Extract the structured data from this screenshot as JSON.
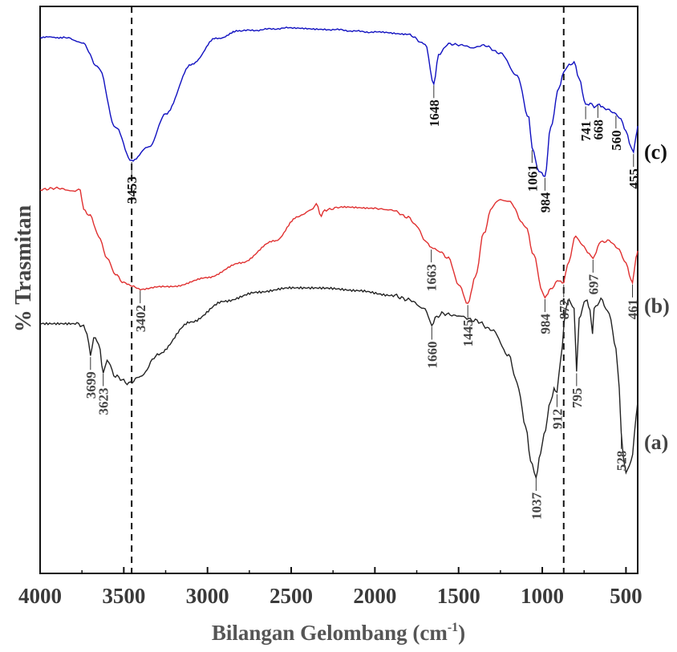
{
  "chart_data": {
    "type": "line",
    "xlabel": "Bilangan Gelombang (cm",
    "xlabel_sup": "-1",
    "xlabel_close": ")",
    "ylabel": "% Trasmitan",
    "xlim": [
      4000,
      430
    ],
    "x_ticks": [
      4000,
      3500,
      3000,
      2500,
      2000,
      1500,
      1000,
      500
    ],
    "tick_labels": [
      "4000",
      "3500",
      "3000",
      "2500",
      "2000",
      "1500",
      "1000",
      "500"
    ],
    "dashed_reference_lines": [
      3453,
      872
    ],
    "grid": false,
    "legend": "labels at right end of each trace",
    "series": [
      {
        "name": "(c)",
        "color": "#1010c0",
        "label_color": "#111111",
        "points": [
          [
            4000,
            0.93
          ],
          [
            3850,
            0.93
          ],
          [
            3750,
            0.89
          ],
          [
            3650,
            0.7
          ],
          [
            3550,
            0.25
          ],
          [
            3453,
            0.0
          ],
          [
            3350,
            0.1
          ],
          [
            3250,
            0.35
          ],
          [
            3100,
            0.72
          ],
          [
            2950,
            0.92
          ],
          [
            2800,
            0.98
          ],
          [
            2500,
            1.0
          ],
          [
            2300,
            0.99
          ],
          [
            2000,
            0.97
          ],
          [
            1800,
            0.95
          ],
          [
            1700,
            0.88
          ],
          [
            1648,
            0.58
          ],
          [
            1620,
            0.8
          ],
          [
            1560,
            0.88
          ],
          [
            1470,
            0.87
          ],
          [
            1420,
            0.85
          ],
          [
            1350,
            0.87
          ],
          [
            1250,
            0.81
          ],
          [
            1150,
            0.64
          ],
          [
            1080,
            0.32
          ],
          [
            1061,
            0.09
          ],
          [
            1020,
            -0.08
          ],
          [
            984,
            -0.12
          ],
          [
            950,
            0.25
          ],
          [
            900,
            0.55
          ],
          [
            872,
            0.67
          ],
          [
            840,
            0.72
          ],
          [
            810,
            0.74
          ],
          [
            780,
            0.62
          ],
          [
            741,
            0.42
          ],
          [
            705,
            0.43
          ],
          [
            690,
            0.4
          ],
          [
            668,
            0.43
          ],
          [
            640,
            0.4
          ],
          [
            600,
            0.38
          ],
          [
            560,
            0.35
          ],
          [
            530,
            0.31
          ],
          [
            500,
            0.22
          ],
          [
            470,
            0.1
          ],
          [
            455,
            0.06
          ],
          [
            440,
            0.18
          ],
          [
            430,
            0.26
          ]
        ],
        "peaks": [
          {
            "x": 1648,
            "label": "1648",
            "dir": "below"
          },
          {
            "x": 3453,
            "label": "3453",
            "dir": "below"
          },
          {
            "x": 1061,
            "label": "1061",
            "dir": "below"
          },
          {
            "x": 984,
            "label": "984",
            "dir": "below"
          },
          {
            "x": 741,
            "label": "741",
            "dir": "below"
          },
          {
            "x": 668,
            "label": "668",
            "dir": "below"
          },
          {
            "x": 560,
            "label": "560",
            "dir": "below"
          },
          {
            "x": 455,
            "label": "455",
            "dir": "below"
          }
        ]
      },
      {
        "name": "(b)",
        "color": "#e03030",
        "label_color": "#444444",
        "points": [
          [
            4000,
            0.8
          ],
          [
            3900,
            0.81
          ],
          [
            3800,
            0.79
          ],
          [
            3760,
            0.8
          ],
          [
            3740,
            0.66
          ],
          [
            3700,
            0.62
          ],
          [
            3650,
            0.48
          ],
          [
            3600,
            0.33
          ],
          [
            3550,
            0.22
          ],
          [
            3500,
            0.16
          ],
          [
            3402,
            0.12
          ],
          [
            3200,
            0.14
          ],
          [
            3000,
            0.2
          ],
          [
            2800,
            0.3
          ],
          [
            2600,
            0.45
          ],
          [
            2450,
            0.62
          ],
          [
            2380,
            0.66
          ],
          [
            2350,
            0.7
          ],
          [
            2320,
            0.62
          ],
          [
            2300,
            0.66
          ],
          [
            2200,
            0.68
          ],
          [
            2000,
            0.67
          ],
          [
            1900,
            0.66
          ],
          [
            1800,
            0.61
          ],
          [
            1750,
            0.55
          ],
          [
            1700,
            0.45
          ],
          [
            1663,
            0.4
          ],
          [
            1620,
            0.38
          ],
          [
            1560,
            0.33
          ],
          [
            1500,
            0.15
          ],
          [
            1445,
            0.02
          ],
          [
            1400,
            0.2
          ],
          [
            1350,
            0.5
          ],
          [
            1300,
            0.68
          ],
          [
            1260,
            0.73
          ],
          [
            1200,
            0.72
          ],
          [
            1100,
            0.55
          ],
          [
            1050,
            0.35
          ],
          [
            1000,
            0.1
          ],
          [
            984,
            0.06
          ],
          [
            950,
            0.12
          ],
          [
            900,
            0.18
          ],
          [
            872,
            0.16
          ],
          [
            850,
            0.28
          ],
          [
            800,
            0.48
          ],
          [
            760,
            0.42
          ],
          [
            720,
            0.36
          ],
          [
            697,
            0.33
          ],
          [
            650,
            0.44
          ],
          [
            600,
            0.45
          ],
          [
            550,
            0.4
          ],
          [
            500,
            0.3
          ],
          [
            470,
            0.18
          ],
          [
            461,
            0.16
          ],
          [
            440,
            0.33
          ],
          [
            430,
            0.38
          ]
        ],
        "peaks": [
          {
            "x": 1663,
            "label": "1663",
            "dir": "below"
          },
          {
            "x": 3402,
            "label": "3402",
            "dir": "below"
          },
          {
            "x": 1445,
            "label": "1445",
            "dir": "below"
          },
          {
            "x": 984,
            "label": "984",
            "dir": "below"
          },
          {
            "x": 872,
            "label": "872",
            "dir": "below"
          },
          {
            "x": 697,
            "label": "697",
            "dir": "below"
          },
          {
            "x": 461,
            "label": "461",
            "dir": "below"
          }
        ]
      },
      {
        "name": "(a)",
        "color": "#222222",
        "label_color": "#444444",
        "points": [
          [
            4000,
            0.76
          ],
          [
            3800,
            0.76
          ],
          [
            3750,
            0.75
          ],
          [
            3720,
            0.72
          ],
          [
            3699,
            0.62
          ],
          [
            3680,
            0.7
          ],
          [
            3650,
            0.67
          ],
          [
            3623,
            0.55
          ],
          [
            3600,
            0.6
          ],
          [
            3550,
            0.53
          ],
          [
            3470,
            0.5
          ],
          [
            3400,
            0.53
          ],
          [
            3300,
            0.62
          ],
          [
            3100,
            0.76
          ],
          [
            2900,
            0.85
          ],
          [
            2700,
            0.89
          ],
          [
            2500,
            0.91
          ],
          [
            2300,
            0.91
          ],
          [
            2100,
            0.9
          ],
          [
            1900,
            0.88
          ],
          [
            1800,
            0.86
          ],
          [
            1700,
            0.82
          ],
          [
            1660,
            0.75
          ],
          [
            1640,
            0.78
          ],
          [
            1600,
            0.8
          ],
          [
            1500,
            0.79
          ],
          [
            1400,
            0.77
          ],
          [
            1300,
            0.73
          ],
          [
            1200,
            0.62
          ],
          [
            1150,
            0.5
          ],
          [
            1100,
            0.32
          ],
          [
            1070,
            0.17
          ],
          [
            1037,
            0.1
          ],
          [
            1010,
            0.2
          ],
          [
            990,
            0.28
          ],
          [
            950,
            0.42
          ],
          [
            930,
            0.48
          ],
          [
            912,
            0.46
          ],
          [
            890,
            0.6
          ],
          [
            860,
            0.82
          ],
          [
            840,
            0.86
          ],
          [
            810,
            0.82
          ],
          [
            795,
            0.55
          ],
          [
            780,
            0.78
          ],
          [
            740,
            0.86
          ],
          [
            715,
            0.82
          ],
          [
            700,
            0.72
          ],
          [
            690,
            0.82
          ],
          [
            650,
            0.86
          ],
          [
            600,
            0.8
          ],
          [
            560,
            0.65
          ],
          [
            540,
            0.48
          ],
          [
            528,
            0.28
          ],
          [
            515,
            0.18
          ],
          [
            500,
            0.12
          ],
          [
            480,
            0.14
          ],
          [
            460,
            0.2
          ],
          [
            440,
            0.35
          ],
          [
            430,
            0.42
          ]
        ],
        "peaks": [
          {
            "x": 3699,
            "label": "3699",
            "dir": "below"
          },
          {
            "x": 3623,
            "label": "3623",
            "dir": "below"
          },
          {
            "x": 1660,
            "label": "1660",
            "dir": "below"
          },
          {
            "x": 1037,
            "label": "1037",
            "dir": "below"
          },
          {
            "x": 912,
            "label": "912",
            "dir": "below"
          },
          {
            "x": 795,
            "label": "795",
            "dir": "below"
          },
          {
            "x": 528,
            "label": "528",
            "dir": "below"
          }
        ]
      }
    ]
  }
}
